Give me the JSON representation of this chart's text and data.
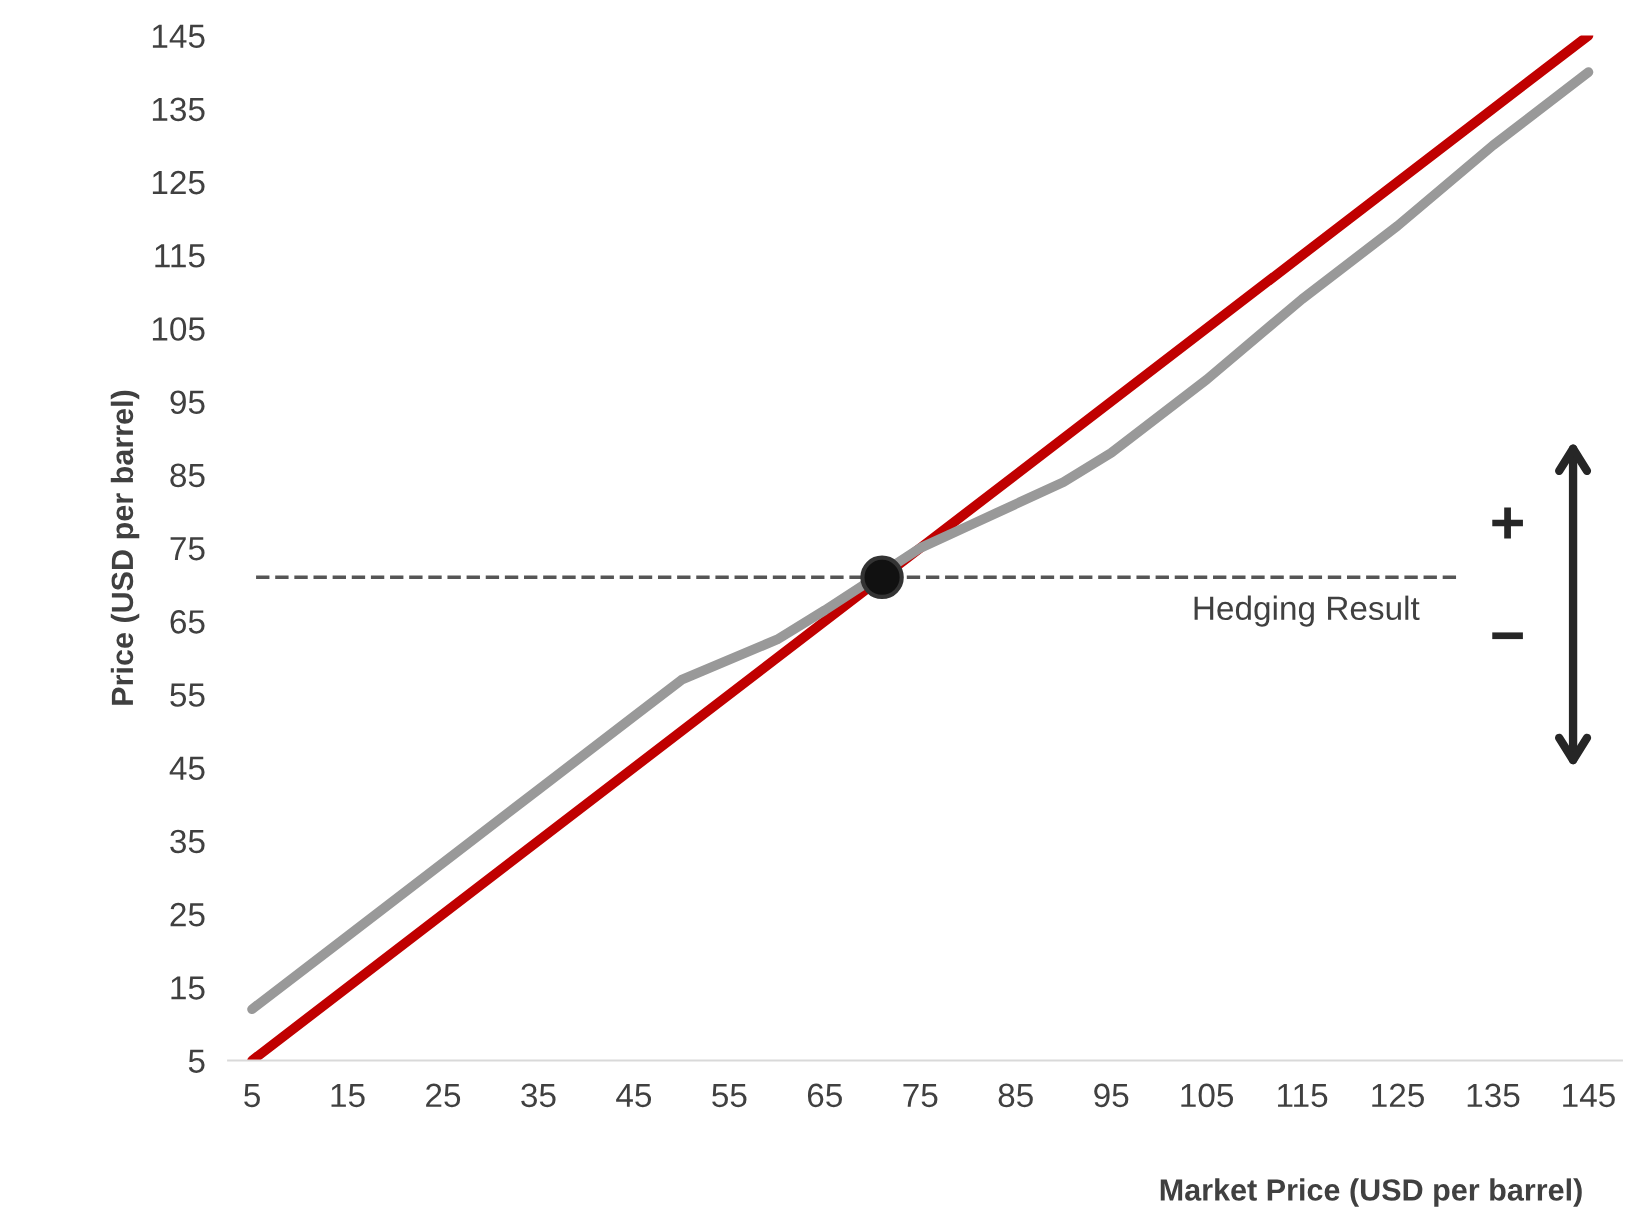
{
  "chart_data": {
    "type": "line",
    "xlabel": "Market Price (USD per barrel)",
    "ylabel": "Price (USD per barrel)",
    "xlim": [
      2.5,
      148.5
    ],
    "ylim": [
      5,
      145
    ],
    "xticks": [
      5,
      15,
      25,
      35,
      45,
      55,
      65,
      75,
      85,
      95,
      105,
      115,
      125,
      135,
      145
    ],
    "yticks": [
      5,
      15,
      25,
      35,
      45,
      55,
      65,
      75,
      85,
      95,
      105,
      115,
      125,
      135,
      145
    ],
    "grid": false,
    "legend": false,
    "marker": "none",
    "line_style": "solid",
    "series": [
      {
        "color": "#c00000",
        "x": [
          5,
          145
        ],
        "values": [
          5,
          145
        ]
      },
      {
        "color": "#999999",
        "x": [
          5,
          15,
          25,
          35,
          45,
          50,
          60,
          65,
          75,
          80,
          90,
          95,
          105,
          115,
          125,
          135,
          145
        ],
        "values": [
          12,
          22,
          32,
          42,
          52,
          57,
          62.5,
          66.5,
          75,
          78,
          84,
          88,
          98,
          109,
          119,
          130,
          140
        ]
      },
      {
        "type": "scatter",
        "color": "#111111",
        "marker": "circle",
        "x": [
          71
        ],
        "values": [
          71
        ]
      }
    ],
    "ref_lines": [
      {
        "axis": "y",
        "value": 71,
        "label": "Hedging Result",
        "color": "#555555",
        "line_style": "dashed"
      }
    ],
    "annotations": [
      "+",
      "−"
    ]
  }
}
